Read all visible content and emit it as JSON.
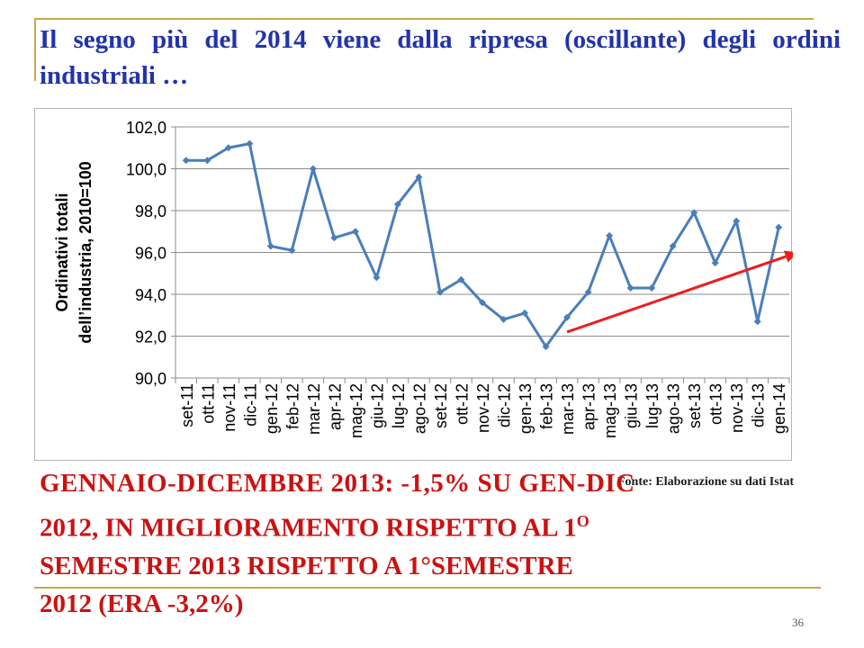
{
  "slide": {
    "title": "Il segno più del 2014 viene dalla ripresa (oscillante) degli ordini industriali …",
    "source": "Fonte: Elaborazione su dati Istat",
    "body_line1": "GENNAIO-DICEMBRE 2013: -1,5% SU GEN-DIC",
    "body_line2_a": "2012, IN MIGLIORAMENTO RISPETTO AL 1",
    "body_line2_sup": "O",
    "body_line3": "SEMESTRE 2013 RISPETTO A 1°SEMESTRE",
    "body_line4": "2012 (ERA -3,2%)",
    "page_number": "36"
  },
  "chart_data": {
    "type": "line",
    "ylabel": "Ordinativi totali dell’industria, 2010=100",
    "ylabel_lines": [
      "Ordinativi totali",
      "dell’industria, 2010=100"
    ],
    "ylim": [
      90,
      102
    ],
    "yticks": [
      "90,0",
      "92,0",
      "94,0",
      "96,0",
      "98,0",
      "100,0",
      "102,0"
    ],
    "grid": true,
    "categories": [
      "set-11",
      "ott-11",
      "nov-11",
      "dic-11",
      "gen-12",
      "feb-12",
      "mar-12",
      "apr-12",
      "mag-12",
      "giu-12",
      "lug-12",
      "ago-12",
      "set-12",
      "ott-12",
      "nov-12",
      "dic-12",
      "gen-13",
      "feb-13",
      "mar-13",
      "apr-13",
      "mag-13",
      "giu-13",
      "lug-13",
      "ago-13",
      "set-13",
      "ott-13",
      "nov-13",
      "dic-13",
      "gen-14"
    ],
    "series": [
      {
        "values": [
          100.4,
          100.4,
          101.0,
          101.2,
          96.3,
          96.1,
          100.0,
          96.7,
          97.0,
          94.8,
          98.3,
          99.6,
          94.1,
          94.7,
          93.6,
          92.8,
          93.1,
          91.5,
          92.9,
          94.1,
          96.8,
          94.3,
          94.3,
          96.3,
          97.9,
          95.5,
          97.5,
          92.7,
          97.2
        ],
        "color": "#4a7ebb"
      }
    ],
    "trend_arrow": {
      "color": "#ee1c1c",
      "from": [
        "mar-13",
        92.2
      ],
      "to": [
        "gen-14",
        96.0
      ]
    }
  }
}
